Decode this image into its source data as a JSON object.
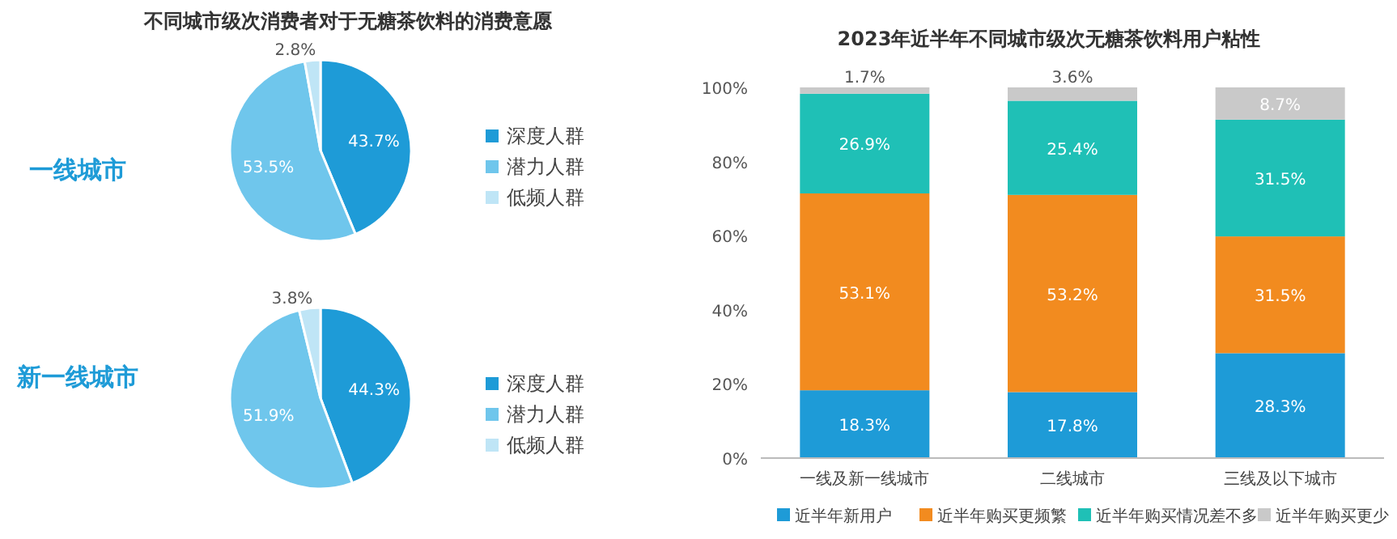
{
  "chart_data": [
    {
      "type": "pie",
      "title": "不同城市级次消费者对于无糖茶饮料的消费意愿",
      "subtitle": "一线城市",
      "categories": [
        "深度人群",
        "潜力人群",
        "低频人群"
      ],
      "values": [
        43.7,
        53.5,
        2.8
      ],
      "colors": [
        "#1e9bd7",
        "#6fc6ec",
        "#bfe5f6"
      ],
      "value_labels": [
        "43.7%",
        "53.5%",
        "2.8%"
      ],
      "legend": "right"
    },
    {
      "type": "pie",
      "subtitle": "新一线城市",
      "categories": [
        "深度人群",
        "潜力人群",
        "低频人群"
      ],
      "values": [
        44.3,
        51.9,
        3.8
      ],
      "colors": [
        "#1e9bd7",
        "#6fc6ec",
        "#bfe5f6"
      ],
      "value_labels": [
        "44.3%",
        "51.9%",
        "3.8%"
      ],
      "legend": "right"
    },
    {
      "type": "bar",
      "title": "2023年近半年不同城市级次无糖茶饮料用户粘性",
      "categories": [
        "一线及新一线城市",
        "二线城市",
        "三线及以下城市"
      ],
      "stacked": true,
      "legend": "bottom",
      "ylim": [
        0,
        100
      ],
      "yticks": [
        {
          "value": 0,
          "label": "0%"
        },
        {
          "value": 20,
          "label": "20%"
        },
        {
          "value": 40,
          "label": "40%"
        },
        {
          "value": 60,
          "label": "60%"
        },
        {
          "value": 80,
          "label": "80%"
        },
        {
          "value": 100,
          "label": "100%"
        }
      ],
      "series": [
        {
          "name": "近半年新用户",
          "color": "#1e9bd7",
          "values": [
            18.3,
            17.8,
            28.3
          ],
          "value_labels": [
            "18.3%",
            "17.8%",
            "28.3%"
          ]
        },
        {
          "name": "近半年购买更频繁",
          "color": "#f28b1f",
          "values": [
            53.1,
            53.2,
            31.5
          ],
          "value_labels": [
            "53.1%",
            "53.2%",
            "31.5%"
          ]
        },
        {
          "name": "近半年购买情况差不多",
          "color": "#1fc0b6",
          "values": [
            26.9,
            25.4,
            31.5
          ],
          "value_labels": [
            "26.9%",
            "25.4%",
            "31.5%"
          ]
        },
        {
          "name": "近半年购买更少",
          "color": "#c9c9c9",
          "values": [
            1.7,
            3.6,
            8.7
          ],
          "value_labels": [
            "1.7%",
            "3.6%",
            "8.7%"
          ]
        }
      ]
    }
  ]
}
